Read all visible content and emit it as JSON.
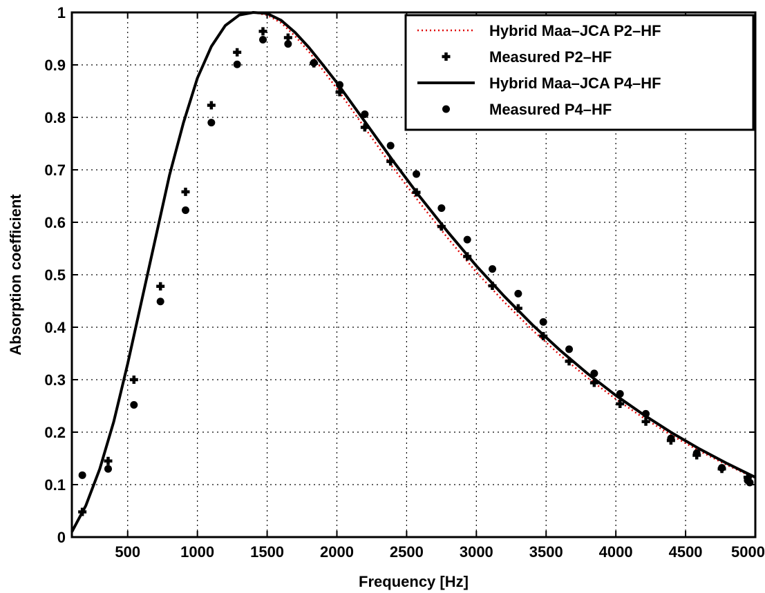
{
  "chart_data": {
    "type": "line",
    "xlabel": "Frequency [Hz]",
    "ylabel": "Absorption coefficient",
    "xlim": [
      100,
      5000
    ],
    "ylim": [
      0,
      1
    ],
    "xticks": [
      500,
      1000,
      1500,
      2000,
      2500,
      3000,
      3500,
      4000,
      4500,
      5000
    ],
    "yticks": [
      0,
      0.1,
      0.2,
      0.3,
      0.4,
      0.5,
      0.6,
      0.7,
      0.8,
      0.9,
      1
    ],
    "ytick_labels": [
      "0",
      "0.1",
      "0.2",
      "0.3",
      "0.4",
      "0.5",
      "0.6",
      "0.7",
      "0.8",
      "0.9",
      "1"
    ],
    "grid": true,
    "legend_position": "top-right",
    "series": [
      {
        "name": "Hybrid Maa–JCA P2–HF",
        "style": "dotted-line",
        "color": "#e00000",
        "x": [
          100,
          200,
          300,
          400,
          500,
          600,
          700,
          800,
          900,
          1000,
          1100,
          1200,
          1300,
          1400,
          1500,
          1600,
          1700,
          1800,
          1900,
          2000,
          2200,
          2400,
          2600,
          2800,
          3000,
          3200,
          3400,
          3600,
          3800,
          4000,
          4200,
          4400,
          4600,
          4800,
          5000
        ],
        "y": [
          0.01,
          0.06,
          0.13,
          0.22,
          0.33,
          0.45,
          0.57,
          0.69,
          0.79,
          0.875,
          0.935,
          0.975,
          0.995,
          1.0,
          0.995,
          0.98,
          0.955,
          0.925,
          0.89,
          0.855,
          0.78,
          0.705,
          0.635,
          0.568,
          0.505,
          0.448,
          0.395,
          0.347,
          0.303,
          0.263,
          0.227,
          0.194,
          0.164,
          0.137,
          0.112
        ]
      },
      {
        "name": "Measured P2–HF",
        "style": "plus-marker",
        "color": "#000000",
        "x": [
          175,
          360,
          545,
          735,
          915,
          1100,
          1285,
          1470,
          1650,
          1835,
          2020,
          2200,
          2385,
          2570,
          2750,
          2935,
          3115,
          3300,
          3480,
          3665,
          3845,
          4030,
          4215,
          4395,
          4580,
          4760,
          4945
        ],
        "y": [
          0.048,
          0.145,
          0.3,
          0.478,
          0.658,
          0.823,
          0.924,
          0.964,
          0.952,
          0.903,
          0.848,
          0.781,
          0.716,
          0.657,
          0.592,
          0.535,
          0.479,
          0.436,
          0.383,
          0.335,
          0.294,
          0.254,
          0.22,
          0.184,
          0.156,
          0.13,
          0.114
        ]
      },
      {
        "name": "Hybrid Maa–JCA P4–HF",
        "style": "solid-line",
        "color": "#000000",
        "x": [
          100,
          200,
          300,
          400,
          500,
          600,
          700,
          800,
          900,
          1000,
          1100,
          1200,
          1300,
          1400,
          1500,
          1600,
          1700,
          1800,
          1900,
          2000,
          2200,
          2400,
          2600,
          2800,
          3000,
          3200,
          3400,
          3600,
          3800,
          4000,
          4200,
          4400,
          4600,
          4800,
          5000
        ],
        "y": [
          0.01,
          0.06,
          0.13,
          0.22,
          0.33,
          0.45,
          0.57,
          0.69,
          0.79,
          0.875,
          0.935,
          0.975,
          0.995,
          1.0,
          0.998,
          0.985,
          0.962,
          0.933,
          0.9,
          0.866,
          0.792,
          0.718,
          0.647,
          0.58,
          0.517,
          0.459,
          0.405,
          0.356,
          0.311,
          0.27,
          0.233,
          0.199,
          0.168,
          0.14,
          0.114
        ]
      },
      {
        "name": "Measured P4–HF",
        "style": "dot-marker",
        "color": "#000000",
        "x": [
          175,
          360,
          545,
          735,
          915,
          1100,
          1285,
          1470,
          1650,
          1835,
          2020,
          2200,
          2385,
          2570,
          2750,
          2935,
          3115,
          3300,
          3480,
          3665,
          3845,
          4030,
          4215,
          4395,
          4580,
          4760,
          4945,
          4960
        ],
        "y": [
          0.118,
          0.13,
          0.252,
          0.449,
          0.623,
          0.79,
          0.901,
          0.948,
          0.94,
          0.904,
          0.862,
          0.806,
          0.746,
          0.692,
          0.627,
          0.567,
          0.511,
          0.464,
          0.41,
          0.358,
          0.312,
          0.273,
          0.235,
          0.188,
          0.16,
          0.132,
          0.108,
          0.104
        ]
      }
    ]
  }
}
